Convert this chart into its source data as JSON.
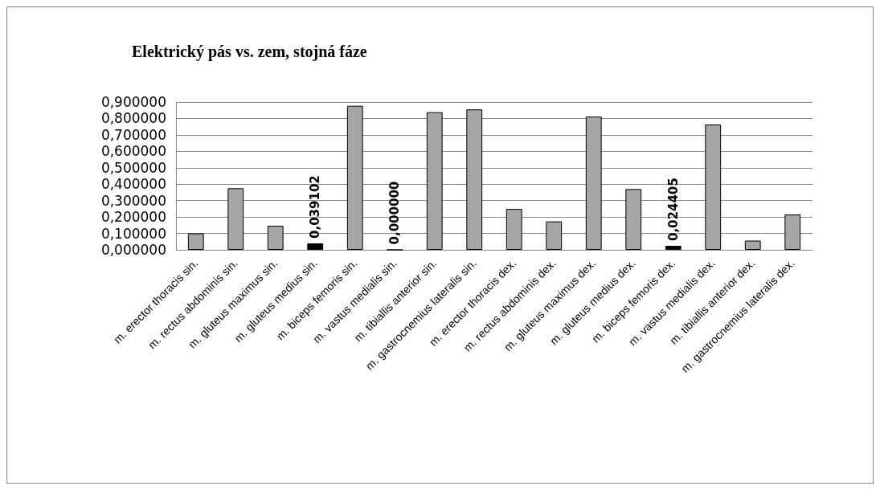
{
  "chart_data": {
    "type": "bar",
    "title": "Elektrický pás vs. zem, stojná fáze",
    "categories": [
      "m. erector thoracis sin.",
      "m. rectus abdominis sin.",
      "m. gluteus maximus sin.",
      "m. gluteus medius sin.",
      "m. biceps femoris sin.",
      "m. vastus medialis sin.",
      "m. tibiallis anterior sin.",
      "m. gastrocnemius lateralis sin.",
      "m. erector thoracis dex.",
      "m. rectus abdominis dex.",
      "m. gluteus maximus dex.",
      "m. gluteus medius dex.",
      "m. biceps femoris dex.",
      "m. vastus medialis dex.",
      "m. tibiallis anterior dex.",
      "m. gastrocnemius lateralis dex."
    ],
    "values": [
      0.1,
      0.375,
      0.146,
      0.039102,
      0.877,
      0,
      0.838,
      0.855,
      0.249,
      0.173,
      0.811,
      0.37,
      0.024405,
      0.763,
      0.056,
      0.215
    ],
    "colors": [
      "#a6a6a6",
      "#a6a6a6",
      "#a6a6a6",
      "#000000",
      "#a6a6a6",
      "#000000",
      "#a6a6a6",
      "#a6a6a6",
      "#a6a6a6",
      "#a6a6a6",
      "#a6a6a6",
      "#a6a6a6",
      "#000000",
      "#a6a6a6",
      "#a6a6a6",
      "#a6a6a6"
    ],
    "value_labels": [
      null,
      null,
      null,
      "0,039102",
      null,
      "0,000000",
      null,
      null,
      null,
      null,
      null,
      null,
      "0,024405",
      null,
      null,
      null
    ],
    "ylim": [
      0,
      0.9
    ],
    "yticks": [
      {
        "value": 0,
        "label": "0,000000"
      },
      {
        "value": 0.1,
        "label": "0,100000"
      },
      {
        "value": 0.2,
        "label": "0,200000"
      },
      {
        "value": 0.3,
        "label": "0,300000"
      },
      {
        "value": 0.4,
        "label": "0,400000"
      },
      {
        "value": 0.5,
        "label": "0,500000"
      },
      {
        "value": 0.6,
        "label": "0,600000"
      },
      {
        "value": 0.7,
        "label": "0,700000"
      },
      {
        "value": 0.8,
        "label": "0,800000"
      },
      {
        "value": 0.9,
        "label": "0,900000"
      }
    ],
    "grid": "y"
  }
}
